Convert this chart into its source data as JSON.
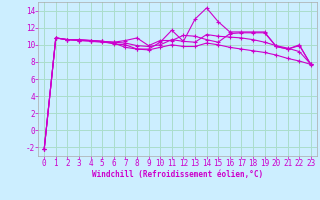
{
  "xlabel": "Windchill (Refroidissement éolien,°C)",
  "background_color": "#cceeff",
  "grid_color": "#aaddcc",
  "line_color": "#cc00cc",
  "tick_color": "#cc00cc",
  "x": [
    0,
    1,
    2,
    3,
    4,
    5,
    6,
    7,
    8,
    9,
    10,
    11,
    12,
    13,
    14,
    15,
    16,
    17,
    18,
    19,
    20,
    21,
    22,
    23
  ],
  "line1": [
    -2.2,
    10.8,
    10.6,
    10.6,
    10.5,
    10.4,
    10.1,
    10.0,
    9.5,
    9.5,
    10.3,
    11.7,
    10.4,
    13.0,
    14.3,
    12.7,
    11.5,
    11.5,
    11.5,
    11.5,
    9.8,
    9.5,
    9.9,
    7.7
  ],
  "line2": [
    -2.2,
    10.8,
    10.6,
    10.6,
    10.5,
    10.4,
    10.3,
    10.2,
    9.9,
    9.8,
    10.0,
    10.6,
    10.4,
    10.3,
    11.2,
    11.0,
    10.9,
    10.8,
    10.6,
    10.3,
    9.9,
    9.6,
    9.2,
    7.7
  ],
  "line3": [
    -2.2,
    10.8,
    10.6,
    10.5,
    10.4,
    10.3,
    10.2,
    9.7,
    9.5,
    9.4,
    9.7,
    10.0,
    9.8,
    9.8,
    10.2,
    10.0,
    9.7,
    9.5,
    9.3,
    9.1,
    8.8,
    8.4,
    8.1,
    7.7
  ],
  "line4": [
    -2.2,
    10.8,
    10.6,
    10.5,
    10.5,
    10.4,
    10.3,
    10.5,
    10.8,
    9.9,
    10.5,
    10.5,
    11.1,
    11.0,
    10.6,
    10.3,
    11.3,
    11.4,
    11.4,
    11.4,
    9.8,
    9.5,
    10.0,
    7.6
  ],
  "ylim": [
    -3,
    15
  ],
  "yticks": [
    -2,
    0,
    2,
    4,
    6,
    8,
    10,
    12,
    14
  ],
  "xlim": [
    -0.5,
    23.5
  ]
}
